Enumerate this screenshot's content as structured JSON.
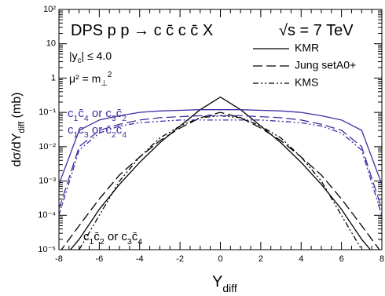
{
  "chart_data": {
    "type": "line",
    "x": [
      -8,
      -7,
      -6,
      -5,
      -4,
      -3,
      -2,
      -1,
      0,
      1,
      2,
      3,
      4,
      5,
      6,
      7,
      8
    ],
    "xlim": [
      -8,
      8
    ],
    "xticks": [
      -8,
      -6,
      -4,
      -2,
      0,
      2,
      4,
      6,
      8
    ],
    "ylim": [
      1e-05,
      100
    ],
    "log_y": true,
    "yticks": [
      {
        "value": 1e-05,
        "label": "10⁻⁵"
      },
      {
        "value": 0.0001,
        "label": "10⁻⁴"
      },
      {
        "value": 0.001,
        "label": "10⁻³"
      },
      {
        "value": 0.01,
        "label": "10⁻²"
      },
      {
        "value": 0.1,
        "label": "10⁻¹"
      },
      {
        "value": 1,
        "label": "1"
      },
      {
        "value": 10,
        "label": "10"
      },
      {
        "value": 100,
        "label": "10²"
      }
    ],
    "x_label": [
      [
        "Y",
        ""
      ],
      [
        "diff",
        "sub"
      ]
    ],
    "y_label": [
      [
        "dσ/dY",
        ""
      ],
      [
        "diff",
        "sub"
      ],
      [
        "      (mb)",
        ""
      ]
    ],
    "annotations": [
      {
        "segments": [
          [
            "DPS  p p → c c̄ c c̄ X",
            ""
          ]
        ],
        "size": 20,
        "color": "#000"
      },
      {
        "segments": [
          [
            "√s = 7 TeV",
            ""
          ]
        ],
        "size": 20,
        "color": "#000"
      },
      {
        "segments": [
          [
            "|y",
            ""
          ],
          [
            "c",
            "sub"
          ],
          [
            "| ≤ 4.0",
            ""
          ]
        ],
        "size": 14,
        "color": "#000"
      },
      {
        "segments": [
          [
            "μ² = m",
            ""
          ],
          [
            "⊥",
            "sub"
          ],
          [
            "2",
            "sup"
          ]
        ],
        "size": 14,
        "color": "#000"
      },
      {
        "segments": [
          [
            "c",
            ""
          ],
          [
            "1",
            "sub"
          ],
          [
            "c̄",
            ""
          ],
          [
            "4",
            "sub"
          ],
          [
            " or c",
            ""
          ],
          [
            "3",
            "sub"
          ],
          [
            "c̄",
            ""
          ],
          [
            "2",
            "sub"
          ]
        ],
        "size": 15,
        "color": "#3b2fa0"
      },
      {
        "segments": [
          [
            "c",
            ""
          ],
          [
            "1",
            "sub"
          ],
          [
            "c",
            ""
          ],
          [
            "3",
            "sub"
          ],
          [
            " or c̄",
            ""
          ],
          [
            "2",
            "sub"
          ],
          [
            "c̄",
            ""
          ],
          [
            "4",
            "sub"
          ]
        ],
        "size": 15,
        "color": "#3b2fa0"
      },
      {
        "segments": [
          [
            "c",
            ""
          ],
          [
            "1",
            "sub"
          ],
          [
            "c̄",
            ""
          ],
          [
            "2",
            "sub"
          ],
          [
            " or c",
            ""
          ],
          [
            "3",
            "sub"
          ],
          [
            "c̄",
            ""
          ],
          [
            "4",
            "sub"
          ]
        ],
        "size": 15,
        "color": "#000"
      }
    ],
    "series": [
      {
        "name": "KMR",
        "color": "#000000",
        "dash": "",
        "values": [
          4e-06,
          2e-05,
          0.00015,
          0.0008,
          0.0035,
          0.013,
          0.04,
          0.12,
          0.28,
          0.12,
          0.04,
          0.013,
          0.0035,
          0.0008,
          0.00015,
          2e-05,
          4e-06
        ]
      },
      {
        "name": "Jung setA0+",
        "color": "#000000",
        "dash": "12 5",
        "values": [
          8e-06,
          5e-05,
          0.0003,
          0.0015,
          0.005,
          0.015,
          0.035,
          0.07,
          0.1,
          0.07,
          0.035,
          0.015,
          0.005,
          0.0015,
          0.0003,
          5e-05,
          8e-06
        ]
      },
      {
        "name": "KMS",
        "color": "#000000",
        "dash": "7 3 2 3 2 3",
        "values": [
          2e-06,
          1e-05,
          0.0001,
          0.001,
          0.005,
          0.018,
          0.04,
          0.07,
          0.08,
          0.07,
          0.04,
          0.018,
          0.005,
          0.001,
          0.0001,
          1e-05,
          2e-06
        ]
      },
      {
        "name": "KMR",
        "color": "#3b2fa0",
        "dash": "",
        "values": [
          0.0008,
          0.03,
          0.06,
          0.08,
          0.1,
          0.11,
          0.115,
          0.12,
          0.12,
          0.12,
          0.115,
          0.11,
          0.1,
          0.08,
          0.06,
          0.03,
          0.0008
        ]
      },
      {
        "name": "Jung setA0+",
        "color": "#3b2fa0",
        "dash": "12 5",
        "values": [
          0.00015,
          0.01,
          0.03,
          0.045,
          0.06,
          0.07,
          0.075,
          0.08,
          0.08,
          0.08,
          0.075,
          0.07,
          0.06,
          0.045,
          0.03,
          0.01,
          0.00015
        ]
      },
      {
        "name": "KMS",
        "color": "#3b2fa0",
        "dash": "7 3 2 3 2 3",
        "values": [
          0.0001,
          0.008,
          0.025,
          0.04,
          0.05,
          0.055,
          0.06,
          0.06,
          0.06,
          0.06,
          0.06,
          0.055,
          0.05,
          0.04,
          0.025,
          0.008,
          0.0001
        ]
      }
    ]
  }
}
